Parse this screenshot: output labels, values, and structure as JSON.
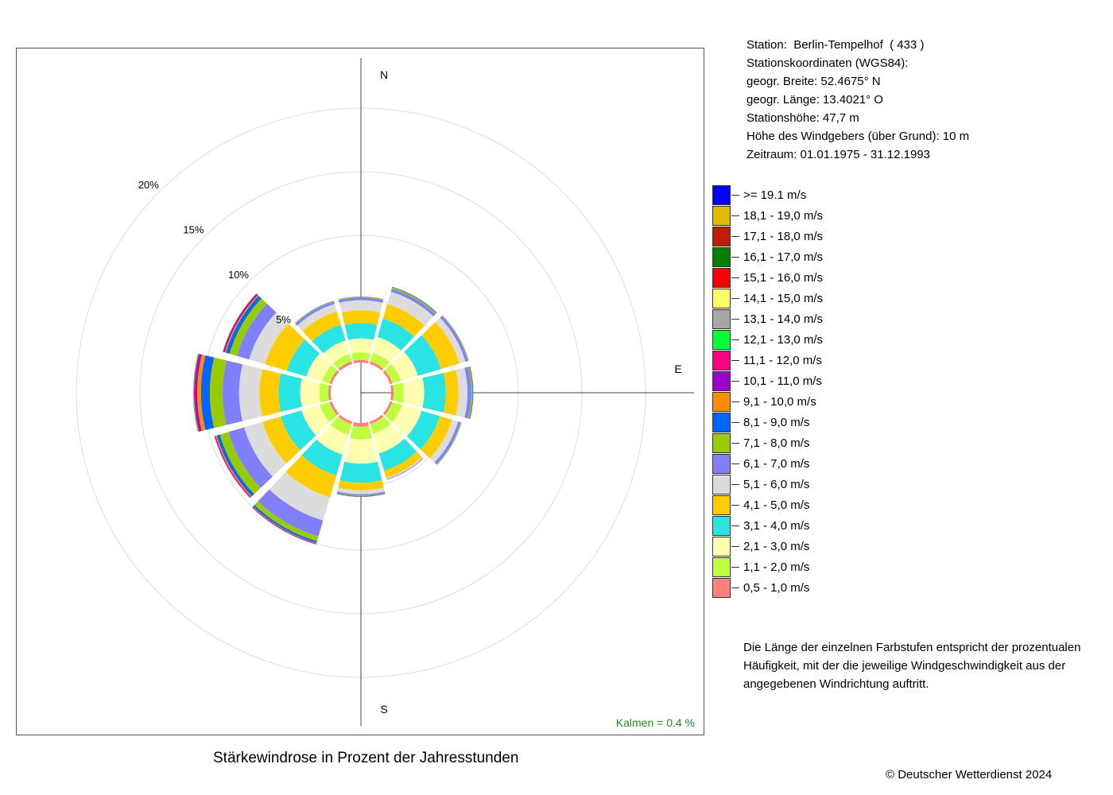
{
  "station_info": {
    "lines": [
      "Station:  Berlin-Tempelhof  ( 433 )",
      "Stationskoordinaten (WGS84):",
      "geogr. Breite: 52.4675° N",
      "geogr. Länge: 13.4021° O",
      "Stationshöhe: 47,7 m",
      "Höhe des Windgebers (über Grund): 10 m",
      "Zeitraum: 01.01.1975 - 31.12.1993"
    ]
  },
  "note_lines": [
    "Die Länge der einzelnen Farbstufen entspricht der prozentualen",
    "Häufigkeit, mit der die jeweilige Windgeschwindigkeit aus der",
    "angegebenen Windrichtung auftritt."
  ],
  "caption": "Stärkewindrose in Prozent der Jahresstunden",
  "copyright": "© Deutscher Wetterdienst  2024",
  "chart_data": {
    "type": "wind-rose",
    "title": "Stärkewindrose in Prozent der Jahresstunden",
    "unit": "%",
    "direction_labels": [
      "N",
      "E",
      "S"
    ],
    "ring_labels": [
      "5%",
      "10%",
      "15%",
      "20%"
    ],
    "ring_values": [
      5,
      10,
      15,
      20
    ],
    "calm_text": "Kalmen  =  0.4 %",
    "calm_color": "#228B22",
    "directions": [
      0,
      30,
      60,
      90,
      120,
      150,
      180,
      210,
      240,
      270,
      300,
      330
    ],
    "classes": [
      {
        "label": "0,5 - 1,0 m/s",
        "color": "#FF7F7F"
      },
      {
        "label": "1,1 - 2,0 m/s",
        "color": "#BFFF3F"
      },
      {
        "label": "2,1 - 3,0 m/s",
        "color": "#FFFFAF"
      },
      {
        "label": "3,1 - 4,0 m/s",
        "color": "#2AE4E4"
      },
      {
        "label": "4,1 - 5,0 m/s",
        "color": "#FFCC00"
      },
      {
        "label": "5,1 - 6,0 m/s",
        "color": "#DCDCDC"
      },
      {
        "label": "6,1 - 7,0 m/s",
        "color": "#8080FF"
      },
      {
        "label": "7,1 - 8,0 m/s",
        "color": "#99CC00"
      },
      {
        "label": "8,1 - 9,0 m/s",
        "color": "#0066FF"
      },
      {
        "label": "9,1 - 10,0 m/s",
        "color": "#FF8C00"
      },
      {
        "label": "10,1 - 11,0 m/s",
        "color": "#9900CC"
      },
      {
        "label": "11,1 - 12,0 m/s",
        "color": "#FF0080"
      },
      {
        "label": "12,1 - 13,0 m/s",
        "color": "#00FF33"
      },
      {
        "label": "13,1 - 14,0 m/s",
        "color": "#A6A6A6"
      },
      {
        "label": "14,1 - 15,0 m/s",
        "color": "#FFFF66"
      },
      {
        "label": "15,1 - 16,0 m/s",
        "color": "#FF0000"
      },
      {
        "label": "16,1 - 17,0 m/s",
        "color": "#008000"
      },
      {
        "label": "17,1 - 18,0 m/s",
        "color": "#C01C00"
      },
      {
        "label": "18,1 - 19,0 m/s",
        "color": "#E0BC00"
      },
      {
        "label": ">= 19.1 m/s",
        "color": "#0000FF"
      }
    ],
    "series": [
      {
        "direction": 0,
        "values": [
          0.2,
          0.6,
          1.1,
          1.2,
          1.0,
          0.8,
          0.2,
          0.05,
          0.03,
          0.01,
          0,
          0,
          0,
          0,
          0,
          0,
          0,
          0,
          0,
          0
        ]
      },
      {
        "direction": 30,
        "values": [
          0.2,
          0.7,
          1.3,
          1.5,
          1.2,
          1.0,
          0.25,
          0.1,
          0.05,
          0.02,
          0,
          0,
          0,
          0,
          0,
          0,
          0,
          0,
          0,
          0
        ]
      },
      {
        "direction": 60,
        "values": [
          0.2,
          0.7,
          1.4,
          1.9,
          1.5,
          0.5,
          0.2,
          0.05,
          0.02,
          0,
          0,
          0,
          0,
          0,
          0,
          0,
          0,
          0,
          0,
          0
        ]
      },
      {
        "direction": 90,
        "values": [
          0.2,
          0.8,
          1.6,
          1.7,
          1.0,
          0.7,
          0.3,
          0.1,
          0.05,
          0.02,
          0,
          0,
          0,
          0,
          0,
          0,
          0,
          0,
          0,
          0
        ]
      },
      {
        "direction": 120,
        "values": [
          0.2,
          0.8,
          1.6,
          1.5,
          1.0,
          0.5,
          0.2,
          0.05,
          0.02,
          0,
          0,
          0,
          0,
          0,
          0,
          0,
          0,
          0,
          0,
          0
        ]
      },
      {
        "direction": 150,
        "values": [
          0.2,
          0.8,
          1.6,
          1.4,
          0.6,
          0.1,
          0.05,
          0.02,
          0,
          0,
          0,
          0,
          0,
          0,
          0,
          0,
          0,
          0,
          0,
          0
        ]
      },
      {
        "direction": 180,
        "values": [
          0.3,
          1.0,
          1.9,
          1.5,
          0.6,
          0.3,
          0.1,
          0.05,
          0.05,
          0.02,
          0,
          0,
          0,
          0,
          0,
          0,
          0,
          0,
          0,
          0
        ]
      },
      {
        "direction": 210,
        "values": [
          0.2,
          0.9,
          1.6,
          1.7,
          1.8,
          1.9,
          1.3,
          0.4,
          0.15,
          0.05,
          0.05,
          0.02,
          0,
          0,
          0,
          0,
          0,
          0,
          0,
          0
        ]
      },
      {
        "direction": 240,
        "values": [
          0.2,
          0.8,
          1.5,
          1.7,
          1.5,
          1.5,
          1.3,
          0.7,
          0.25,
          0.1,
          0.05,
          0.05,
          0,
          0,
          0,
          0,
          0,
          0,
          0,
          0
        ]
      },
      {
        "direction": 270,
        "values": [
          0.2,
          0.7,
          1.5,
          1.7,
          1.5,
          1.6,
          1.3,
          1.0,
          0.7,
          0.3,
          0.15,
          0.1,
          0.05,
          0.02,
          0,
          0,
          0,
          0,
          0,
          0
        ]
      },
      {
        "direction": 300,
        "values": [
          0.2,
          0.6,
          1.3,
          1.6,
          1.8,
          1.3,
          1.0,
          0.6,
          0.3,
          0.1,
          0.1,
          0.05,
          0.02,
          0,
          0,
          0,
          0,
          0,
          0,
          0
        ]
      },
      {
        "direction": 330,
        "values": [
          0.2,
          0.6,
          1.1,
          1.3,
          1.1,
          0.6,
          0.2,
          0.05,
          0.02,
          0,
          0,
          0,
          0,
          0,
          0,
          0,
          0,
          0,
          0,
          0
        ]
      }
    ]
  }
}
